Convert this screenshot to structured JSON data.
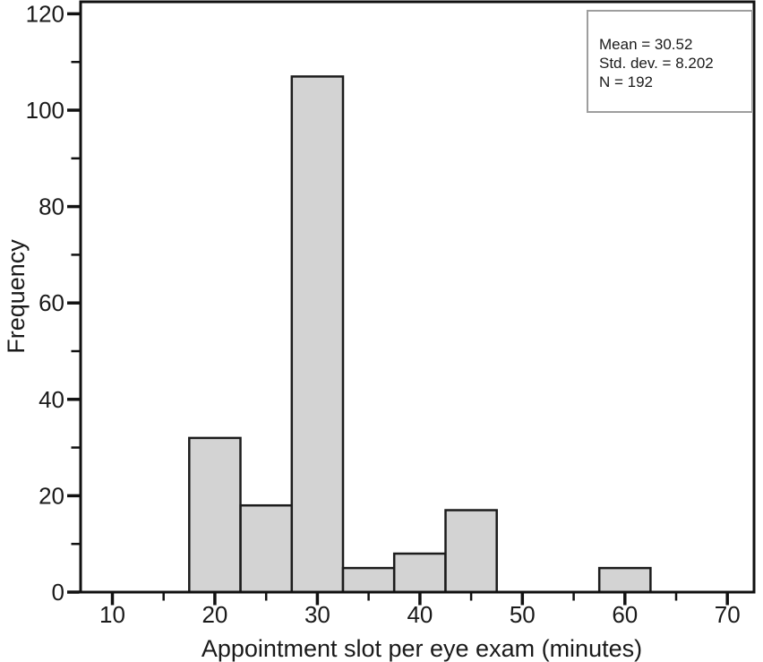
{
  "chart_data": {
    "type": "bar",
    "subtype": "histogram",
    "title": "",
    "xlabel": "Appointment slot per eye exam (minutes)",
    "ylabel": "Frequency",
    "bin_width": 5,
    "bin_centers": [
      20,
      25,
      30,
      35,
      40,
      45,
      60
    ],
    "values": [
      32,
      18,
      107,
      5,
      8,
      17,
      5
    ],
    "x_major_ticks": [
      10,
      20,
      30,
      40,
      50,
      60,
      70
    ],
    "x_minor_ticks": [
      15,
      25,
      35,
      45,
      55,
      65
    ],
    "y_major_ticks": [
      0,
      20,
      40,
      60,
      80,
      100,
      120
    ],
    "y_minor_ticks": [
      10,
      30,
      50,
      70,
      90,
      110
    ],
    "xlim": [
      6.9,
      72.6
    ],
    "ylim": [
      0,
      122.5
    ],
    "grid": "off",
    "legend_position": "none",
    "colors": {
      "bar_fill": "#d3d3d3",
      "bar_stroke": "#1c1c1c",
      "axis_stroke": "#111111",
      "text": "#1a1a1a",
      "stats_box_border": "#9e9e9e"
    }
  },
  "stats_box": {
    "lines": [
      "Mean = 30.52",
      "Std. dev. = 8.202",
      "N = 192"
    ]
  }
}
